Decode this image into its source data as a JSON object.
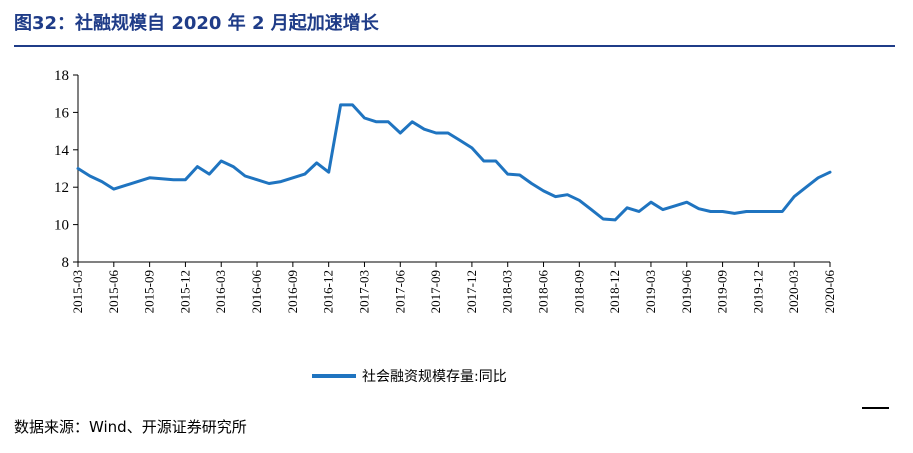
{
  "figure_title": "图32：社融规模自 2020 年 2 月起加速增长",
  "source": "数据来源：Wind、开源证券研究所",
  "chart_data": {
    "type": "line",
    "title": "",
    "xlabel": "",
    "ylabel": "",
    "ylim": [
      8,
      18
    ],
    "yticks": [
      "8",
      "10",
      "12",
      "14",
      "16",
      "18"
    ],
    "xtick_labels": [
      "2015-03",
      "2015-06",
      "2015-09",
      "2015-12",
      "2016-03",
      "2016-06",
      "2016-09",
      "2016-12",
      "2017-03",
      "2017-06",
      "2017-09",
      "2017-12",
      "2018-03",
      "2018-06",
      "2018-09",
      "2018-12",
      "2019-03",
      "2019-06",
      "2019-09",
      "2019-12",
      "2020-03",
      "2020-06"
    ],
    "grid": false,
    "legend_position": "bottom",
    "line_color": "#1f74c0",
    "series": [
      {
        "name": "社会融资规模存量:同比",
        "x": [
          "2015-03",
          "2015-04",
          "2015-05",
          "2015-06",
          "2015-07",
          "2015-08",
          "2015-09",
          "2015-10",
          "2015-11",
          "2015-12",
          "2016-01",
          "2016-02",
          "2016-03",
          "2016-04",
          "2016-05",
          "2016-06",
          "2016-07",
          "2016-08",
          "2016-09",
          "2016-10",
          "2016-11",
          "2016-12",
          "2017-01",
          "2017-02",
          "2017-03",
          "2017-04",
          "2017-05",
          "2017-06",
          "2017-07",
          "2017-08",
          "2017-09",
          "2017-10",
          "2017-11",
          "2017-12",
          "2018-01",
          "2018-02",
          "2018-03",
          "2018-04",
          "2018-05",
          "2018-06",
          "2018-07",
          "2018-08",
          "2018-09",
          "2018-10",
          "2018-11",
          "2018-12",
          "2019-01",
          "2019-02",
          "2019-03",
          "2019-04",
          "2019-05",
          "2019-06",
          "2019-07",
          "2019-08",
          "2019-09",
          "2019-10",
          "2019-11",
          "2019-12",
          "2020-01",
          "2020-02",
          "2020-03",
          "2020-04",
          "2020-05",
          "2020-06"
        ],
        "values": [
          13.0,
          12.6,
          12.3,
          11.9,
          12.1,
          12.3,
          12.5,
          12.45,
          12.4,
          12.4,
          13.1,
          12.7,
          13.4,
          13.1,
          12.6,
          12.4,
          12.2,
          12.3,
          12.5,
          12.7,
          13.3,
          12.8,
          16.4,
          16.4,
          15.7,
          15.5,
          15.5,
          14.9,
          15.5,
          15.1,
          14.9,
          14.9,
          14.5,
          14.1,
          13.4,
          13.4,
          12.7,
          12.65,
          12.2,
          11.8,
          11.5,
          11.6,
          11.3,
          10.8,
          10.3,
          10.25,
          10.9,
          10.7,
          11.2,
          10.8,
          11.0,
          11.2,
          10.85,
          10.7,
          10.7,
          10.6,
          10.7,
          10.7,
          10.7,
          10.7,
          11.5,
          12.0,
          12.5,
          12.8
        ]
      }
    ]
  }
}
